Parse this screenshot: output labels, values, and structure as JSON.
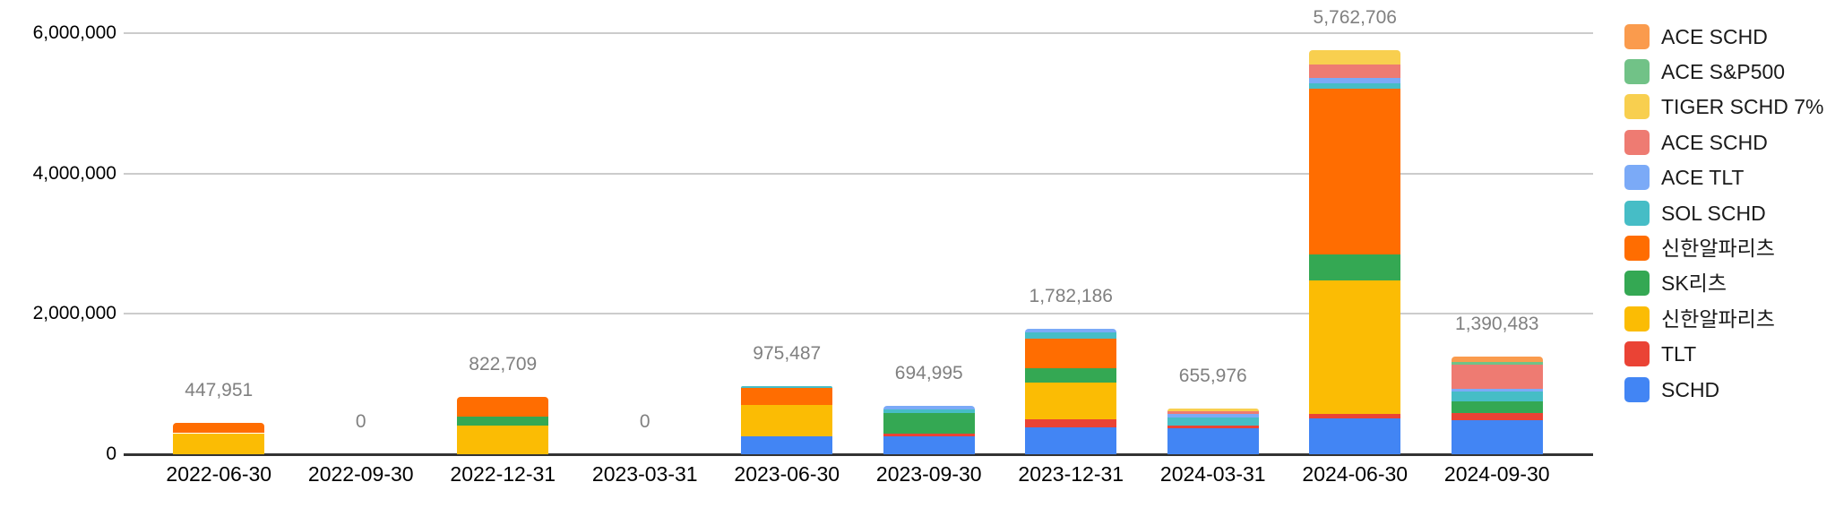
{
  "chart_data": {
    "type": "bar",
    "stacked": true,
    "title": "",
    "xlabel": "",
    "ylabel": "",
    "ylim": [
      0,
      6000000
    ],
    "grid": true,
    "legend_position": "right",
    "yticks": [
      {
        "label": "0",
        "value": 0
      },
      {
        "label": "2,000,000",
        "value": 2000000
      },
      {
        "label": "4,000,000",
        "value": 4000000
      },
      {
        "label": "6,000,000",
        "value": 6000000
      }
    ],
    "categories": [
      "2022-06-30",
      "2022-09-30",
      "2022-12-31",
      "2023-03-31",
      "2023-06-30",
      "2023-09-30",
      "2023-12-31",
      "2024-03-31",
      "2024-06-30",
      "2024-09-30"
    ],
    "totals": [
      "447,951",
      "0",
      "822,709",
      "0",
      "975,487",
      "694,995",
      "1,782,186",
      "655,976",
      "5,762,706",
      "1,390,483"
    ],
    "series": [
      {
        "name": "SCHD",
        "color": "#4285F4",
        "values": [
          0,
          0,
          0,
          0,
          250000,
          250000,
          380000,
          370000,
          510000,
          490000
        ]
      },
      {
        "name": "TLT",
        "color": "#EA4335",
        "values": [
          0,
          0,
          0,
          0,
          0,
          45000,
          114000,
          40000,
          64000,
          100000
        ]
      },
      {
        "name": "신한알파리츠",
        "color": "#FBBC04",
        "values": [
          300000,
          0,
          410000,
          0,
          450000,
          0,
          532000,
          0,
          1900000,
          0
        ]
      },
      {
        "name": "SK리츠",
        "color": "#34A853",
        "values": [
          0,
          0,
          128000,
          0,
          0,
          290000,
          203000,
          0,
          370000,
          165000
        ]
      },
      {
        "name": "신한알파리츠",
        "color": "#FF6D01",
        "values": [
          147951,
          0,
          284709,
          0,
          250000,
          0,
          419000,
          0,
          2360000,
          0
        ]
      },
      {
        "name": "SOL SCHD",
        "color": "#46BDC6",
        "values": [
          0,
          0,
          0,
          0,
          25487,
          47000,
          90000,
          115000,
          77000,
          140000
        ]
      },
      {
        "name": "ACE TLT",
        "color": "#7BAAF7",
        "values": [
          0,
          0,
          0,
          0,
          0,
          62995,
          44186,
          45000,
          77000,
          38000
        ]
      },
      {
        "name": "ACE SCHD",
        "color": "#EE7B72",
        "values": [
          0,
          0,
          0,
          0,
          0,
          0,
          0,
          40000,
          195000,
          340000
        ]
      },
      {
        "name": "TIGER SCHD 7%",
        "color": "#F8CF4F",
        "values": [
          0,
          0,
          0,
          0,
          0,
          0,
          0,
          45976,
          209706,
          0
        ]
      },
      {
        "name": "ACE S&P500",
        "color": "#71C287",
        "values": [
          0,
          0,
          0,
          0,
          0,
          0,
          0,
          0,
          0,
          38000
        ]
      },
      {
        "name": "ACE SCHD",
        "color": "#FA9B4D",
        "values": [
          0,
          0,
          0,
          0,
          0,
          0,
          0,
          0,
          0,
          79483
        ]
      }
    ],
    "legend_note": "legend lists series top-to-bottom in reverse stacking order"
  },
  "colors": {
    "background": "#ffffff",
    "gridline": "#cccccc",
    "axis_line": "#333333",
    "axis_text": "#000000",
    "annotation_text": "#808080"
  }
}
